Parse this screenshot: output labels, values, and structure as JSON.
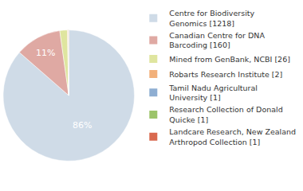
{
  "chart_data": {
    "type": "pie",
    "categories": [
      "Centre for Biodiversity Genomics [1218]",
      "Canadian Centre for DNA Barcoding [160]",
      "Mined from GenBank, NCBI [26]",
      "Robarts Research Institute [2]",
      "Tamil Nadu Agricultural University [1]",
      "Research Collection of Donald Quicke [1]",
      "Landcare Research, New Zealand Arthropod Collection [1]"
    ],
    "values": [
      86.44,
      11.36,
      1.85,
      0.14,
      0.07,
      0.07,
      0.07
    ],
    "value_labels": [
      "86%",
      "11%",
      null,
      null,
      null,
      null,
      null
    ],
    "data_labels": true,
    "legend": "right",
    "colors": [
      "#cfdbe7",
      "#dfa9a3",
      "#dfe59f",
      "#f2b07a",
      "#8eaed2",
      "#9cc46a",
      "#d9694f"
    ]
  }
}
